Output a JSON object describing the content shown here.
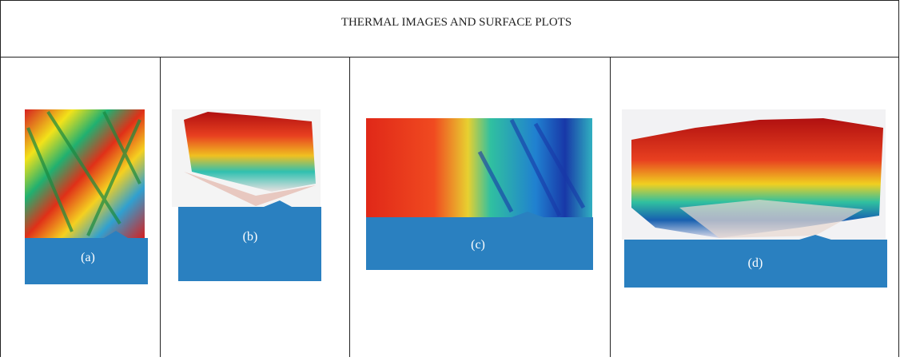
{
  "header": {
    "title": "THERMAL IMAGES AND SURFACE PLOTS"
  },
  "panels": [
    {
      "label": "(a)"
    },
    {
      "label": "(b)"
    },
    {
      "label": "(c)"
    },
    {
      "label": "(d)"
    }
  ]
}
